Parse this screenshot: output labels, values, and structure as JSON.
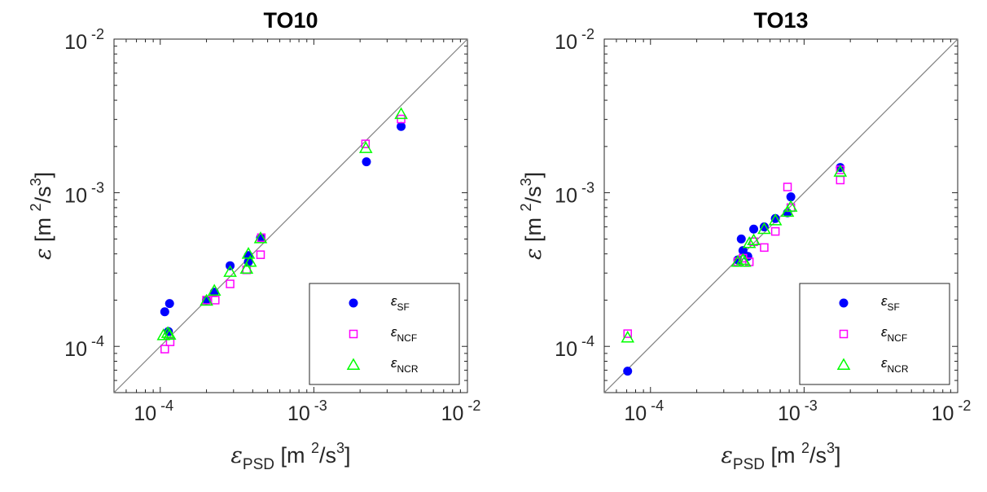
{
  "chart_data": [
    {
      "type": "scatter",
      "title": "TO10",
      "xscale": "log",
      "yscale": "log",
      "xlim": [
        5e-05,
        0.01
      ],
      "ylim": [
        5e-05,
        0.01
      ],
      "x_ticks": [
        {
          "base": "10",
          "exp": "-4",
          "value": 0.0001
        },
        {
          "base": "10",
          "exp": "-3",
          "value": 0.001
        },
        {
          "base": "10",
          "exp": "-2",
          "value": 0.01
        }
      ],
      "y_ticks": [
        {
          "base": "10",
          "exp": "-4",
          "value": 0.0001
        },
        {
          "base": "10",
          "exp": "-3",
          "value": 0.001
        },
        {
          "base": "10",
          "exp": "-2",
          "value": 0.01
        }
      ],
      "xlabel": {
        "sym": "ε",
        "sub": "PSD",
        "unit_pre": " [m ",
        "sup": "2",
        "unit_mid": "/s",
        "sup2": "3",
        "unit_post": "]"
      },
      "ylabel": {
        "sym": "ε",
        "sub": "",
        "unit_pre": " [m ",
        "sup": "2",
        "unit_mid": "/s",
        "sup2": "3",
        "unit_post": "]"
      },
      "reference_line": "y = x",
      "legend_position": "bottom-right",
      "grid": false,
      "series": [
        {
          "name": "ε",
          "sub": "SF",
          "marker": "circle",
          "color": "#0000ff",
          "points": [
            [
              0.000107,
              0.000168
            ],
            [
              0.000115,
              0.00019
            ],
            [
              0.000113,
              0.000125
            ],
            [
              0.0002,
              0.0002
            ],
            [
              0.000225,
              0.000225
            ],
            [
              0.000285,
              0.000335
            ],
            [
              0.000375,
              0.000355
            ],
            [
              0.000375,
              0.00039
            ],
            [
              0.00045,
              0.00051
            ],
            [
              0.0022,
              0.00159
            ],
            [
              0.0037,
              0.0027
            ]
          ]
        },
        {
          "name": "ε",
          "sub": "NCF",
          "marker": "square",
          "color": "#ff00ff",
          "points": [
            [
              0.000107,
              9.6e-05
            ],
            [
              0.000116,
              0.000107
            ],
            [
              0.0002,
              0.0002
            ],
            [
              0.000228,
              0.0002
            ],
            [
              0.000285,
              0.000255
            ],
            [
              0.000365,
              0.000315
            ],
            [
              0.00045,
              0.000395
            ],
            [
              0.000455,
              0.00051
            ],
            [
              0.00217,
              0.00208
            ],
            [
              0.0037,
              0.00302
            ]
          ]
        },
        {
          "name": "ε",
          "sub": "NCR",
          "marker": "triangle",
          "color": "#00ff00",
          "points": [
            [
              0.000105,
              0.000118
            ],
            [
              0.000112,
              0.000122
            ],
            [
              0.000115,
              0.000119
            ],
            [
              0.0002,
              0.000198
            ],
            [
              0.000225,
              0.00023
            ],
            [
              0.000285,
              0.000305
            ],
            [
              0.000365,
              0.00032
            ],
            [
              0.000375,
              0.0004
            ],
            [
              0.000385,
              0.000355
            ],
            [
              0.00045,
              0.000505
            ],
            [
              0.00218,
              0.00195
            ],
            [
              0.0037,
              0.00325
            ]
          ]
        }
      ]
    },
    {
      "type": "scatter",
      "title": "TO13",
      "xscale": "log",
      "yscale": "log",
      "xlim": [
        5e-05,
        0.01
      ],
      "ylim": [
        5e-05,
        0.01
      ],
      "x_ticks": [
        {
          "base": "10",
          "exp": "-4",
          "value": 0.0001
        },
        {
          "base": "10",
          "exp": "-3",
          "value": 0.001
        },
        {
          "base": "10",
          "exp": "-2",
          "value": 0.01
        }
      ],
      "y_ticks": [
        {
          "base": "10",
          "exp": "-4",
          "value": 0.0001
        },
        {
          "base": "10",
          "exp": "-3",
          "value": 0.001
        },
        {
          "base": "10",
          "exp": "-2",
          "value": 0.01
        }
      ],
      "xlabel": {
        "sym": "ε",
        "sub": "PSD",
        "unit_pre": " [m ",
        "sup": "2",
        "unit_mid": "/s",
        "sup2": "3",
        "unit_post": "]"
      },
      "ylabel": {
        "sym": "ε",
        "sub": "",
        "unit_pre": " [m ",
        "sup": "2",
        "unit_mid": "/s",
        "sup2": "3",
        "unit_post": "]"
      },
      "reference_line": "y = x",
      "legend_position": "bottom-right",
      "grid": false,
      "series": [
        {
          "name": "ε",
          "sub": "SF",
          "marker": "circle",
          "color": "#0000ff",
          "points": [
            [
              7.1e-05,
              6.9e-05
            ],
            [
              0.00037,
              0.000365
            ],
            [
              0.00039,
              0.0005
            ],
            [
              0.0004,
              0.00042
            ],
            [
              0.00043,
              0.000385
            ],
            [
              0.00047,
              0.00058
            ],
            [
              0.00055,
              0.0006
            ],
            [
              0.00065,
              0.00068
            ],
            [
              0.00078,
              0.00074
            ],
            [
              0.00082,
              0.00094
            ],
            [
              0.00172,
              0.00146
            ]
          ]
        },
        {
          "name": "ε",
          "sub": "NCF",
          "marker": "square",
          "color": "#ff00ff",
          "points": [
            [
              7.1e-05,
              0.000121
            ],
            [
              0.00037,
              0.000355
            ],
            [
              0.0004,
              0.000375
            ],
            [
              0.00044,
              0.000355
            ],
            [
              0.00047,
              0.00048
            ],
            [
              0.00055,
              0.00044
            ],
            [
              0.00065,
              0.00056
            ],
            [
              0.00078,
              0.00109
            ],
            [
              0.00082,
              0.0008
            ],
            [
              0.00172,
              0.00121
            ],
            [
              0.00172,
              0.00141
            ]
          ]
        },
        {
          "name": "ε",
          "sub": "NCR",
          "marker": "triangle",
          "color": "#00ff00",
          "points": [
            [
              7.1e-05,
              0.000114
            ],
            [
              0.00037,
              0.000355
            ],
            [
              0.0004,
              0.000365
            ],
            [
              0.00041,
              0.000355
            ],
            [
              0.00044,
              0.00047
            ],
            [
              0.00047,
              0.00049
            ],
            [
              0.00055,
              0.00058
            ],
            [
              0.00065,
              0.00066
            ],
            [
              0.00078,
              0.00075
            ],
            [
              0.00082,
              0.00081
            ],
            [
              0.00172,
              0.00137
            ]
          ]
        }
      ]
    }
  ]
}
